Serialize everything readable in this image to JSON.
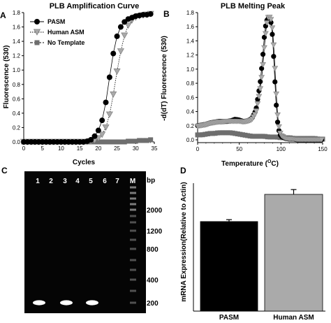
{
  "panels": {
    "A": {
      "letter": "A",
      "title": "PLB Amplification Curve",
      "xlabel": "Cycles",
      "ylabel": "Fluorescence (530)",
      "xticks": [
        "0",
        "5",
        "10",
        "15",
        "20",
        "25",
        "30",
        "35"
      ],
      "yticks": [
        "0.0",
        "0.2",
        "0.4",
        "0.6",
        "0.8",
        "1.0",
        "1.2",
        "1.4",
        "1.6",
        "1.8"
      ],
      "legend": [
        "PASM",
        "Human ASM",
        "No Template"
      ]
    },
    "B": {
      "letter": "B",
      "title": "PLB Melting Peak",
      "xlabel": "Temperature (",
      "xlabel_sup": "O",
      "xlabel_end": "C)",
      "ylabel": "-d(dT) Fluorescence (530)",
      "xticks": [
        "0",
        "50",
        "100",
        "150"
      ],
      "yticks": [
        "0.0",
        "0.2",
        "0.4",
        "0.6",
        "0.8",
        "1.0",
        "1.2",
        "1.4",
        "1.6",
        "1.8"
      ]
    },
    "C": {
      "letter": "C",
      "lanes": [
        "1",
        "2",
        "3",
        "4",
        "5",
        "6",
        "7",
        "M"
      ],
      "bp_header": "bp",
      "markers": [
        "2000",
        "1200",
        "800",
        "400",
        "200"
      ]
    },
    "D": {
      "letter": "D",
      "ylabel": "mRNA Expression(Relative to Actin)",
      "categories": [
        "PASM",
        "Human ASM"
      ]
    }
  },
  "colors": {
    "pasm": "#000000",
    "human_asm": "#a9a9a9",
    "no_template": "#6e6e6e",
    "gel_background": "#050505",
    "bar_pasm": "#000000",
    "bar_human": "#aaaaaa"
  },
  "chart_data": [
    {
      "type": "line",
      "panel": "A",
      "xlim": [
        0,
        35
      ],
      "ylim": [
        0,
        1.8
      ],
      "series": [
        {
          "name": "PASM",
          "x": [
            0,
            1,
            2,
            3,
            4,
            5,
            6,
            7,
            8,
            9,
            10,
            11,
            12,
            13,
            14,
            15,
            16,
            17,
            18,
            19,
            20,
            21,
            22,
            23,
            24,
            25,
            26,
            27,
            28,
            29,
            30,
            31,
            32,
            33,
            34
          ],
          "y": [
            0.0,
            0.0,
            0.0,
            0.0,
            0.0,
            0.0,
            0.0,
            0.0,
            0.0,
            0.0,
            0.0,
            0.0,
            0.0,
            0.0,
            0.0,
            0.0,
            0.0,
            0.01,
            0.03,
            0.08,
            0.16,
            0.3,
            0.55,
            0.9,
            1.23,
            1.47,
            1.6,
            1.67,
            1.71,
            1.73,
            1.75,
            1.76,
            1.77,
            1.77,
            1.78
          ]
        },
        {
          "name": "Human ASM",
          "x": [
            0,
            1,
            2,
            3,
            4,
            5,
            6,
            7,
            8,
            9,
            10,
            11,
            12,
            13,
            14,
            15,
            16,
            17,
            18,
            19,
            20,
            21,
            22,
            23,
            24,
            25,
            26,
            27,
            28,
            29,
            30,
            31,
            32,
            33,
            34
          ],
          "y": [
            0.0,
            0.0,
            0.0,
            0.0,
            0.0,
            0.0,
            0.0,
            0.0,
            0.0,
            0.0,
            0.0,
            0.0,
            0.0,
            0.0,
            0.0,
            0.0,
            0.0,
            0.0,
            0.01,
            0.02,
            0.05,
            0.1,
            0.2,
            0.38,
            0.66,
            0.98,
            1.26,
            1.48,
            1.62,
            1.69,
            1.73,
            1.75,
            1.76,
            1.77,
            1.78
          ]
        },
        {
          "name": "No Template",
          "x": [
            0,
            1,
            2,
            3,
            4,
            5,
            6,
            7,
            8,
            9,
            10,
            11,
            12,
            13,
            14,
            15,
            16,
            17,
            18,
            19,
            20,
            21,
            22,
            23,
            24,
            25,
            26,
            27,
            28,
            29,
            30,
            31,
            32,
            33,
            34
          ],
          "y": [
            0.0,
            0.0,
            0.0,
            0.0,
            0.0,
            0.0,
            0.0,
            0.0,
            0.0,
            0.0,
            0.0,
            0.0,
            0.0,
            0.0,
            0.0,
            0.0,
            0.0,
            0.0,
            0.0,
            0.0,
            0.0,
            0.0,
            0.0,
            0.0,
            0.0,
            0.0,
            0.0,
            0.0,
            0.01,
            0.01,
            0.01,
            0.02,
            0.02,
            0.02,
            0.03
          ]
        }
      ]
    },
    {
      "type": "line",
      "panel": "B",
      "xlim": [
        0,
        150
      ],
      "ylim": [
        0,
        1.8
      ],
      "series": [
        {
          "name": "PASM",
          "x": [
            0,
            5,
            10,
            15,
            20,
            25,
            30,
            35,
            40,
            45,
            50,
            55,
            60,
            65,
            70,
            75,
            78,
            80,
            82,
            84,
            86,
            88,
            90,
            92,
            94,
            96,
            98,
            100,
            105,
            110,
            115,
            120,
            125,
            130,
            135,
            140,
            145,
            150
          ],
          "y": [
            0.2,
            0.21,
            0.22,
            0.24,
            0.25,
            0.26,
            0.26,
            0.26,
            0.27,
            0.29,
            0.28,
            0.26,
            0.27,
            0.3,
            0.42,
            0.8,
            1.15,
            1.45,
            1.65,
            1.72,
            1.72,
            1.66,
            1.45,
            1.0,
            0.55,
            0.25,
            0.1,
            0.05,
            0.02,
            0.01,
            0.01,
            0.0,
            0.0,
            0.0,
            0.0,
            0.0,
            0.0,
            0.0
          ]
        },
        {
          "name": "Human ASM",
          "x": [
            0,
            5,
            10,
            15,
            20,
            25,
            30,
            35,
            40,
            45,
            50,
            55,
            60,
            65,
            70,
            75,
            78,
            80,
            82,
            84,
            86,
            88,
            90,
            92,
            94,
            96,
            98,
            100,
            105,
            110,
            115,
            120,
            125,
            130,
            135,
            140,
            145,
            150
          ],
          "y": [
            0.19,
            0.2,
            0.21,
            0.23,
            0.24,
            0.25,
            0.25,
            0.26,
            0.26,
            0.26,
            0.26,
            0.25,
            0.26,
            0.28,
            0.38,
            0.7,
            1.0,
            1.3,
            1.55,
            1.72,
            1.74,
            1.7,
            1.55,
            1.2,
            0.72,
            0.35,
            0.14,
            0.06,
            0.02,
            0.01,
            0.01,
            0.0,
            0.0,
            0.0,
            0.0,
            0.0,
            0.0,
            0.0
          ]
        },
        {
          "name": "No Template",
          "x": [
            0,
            5,
            10,
            15,
            20,
            25,
            30,
            35,
            40,
            45,
            50,
            55,
            60,
            65,
            70,
            75,
            80,
            85,
            90,
            95,
            100,
            105,
            110,
            115,
            120,
            125,
            130,
            135,
            140,
            145,
            150
          ],
          "y": [
            0.07,
            0.07,
            0.08,
            0.09,
            0.09,
            0.1,
            0.1,
            0.1,
            0.1,
            0.09,
            0.08,
            0.07,
            0.06,
            0.05,
            0.05,
            0.05,
            0.05,
            0.04,
            0.04,
            0.04,
            0.03,
            0.03,
            0.03,
            0.02,
            0.02,
            0.02,
            0.02,
            0.02,
            0.02,
            0.01,
            0.01
          ]
        }
      ]
    },
    {
      "type": "bar",
      "panel": "D",
      "categories": [
        "PASM",
        "Human ASM"
      ],
      "values": [
        0.56,
        0.73
      ],
      "errors": [
        0.012,
        0.03
      ],
      "ylim": [
        0,
        0.8
      ]
    }
  ]
}
